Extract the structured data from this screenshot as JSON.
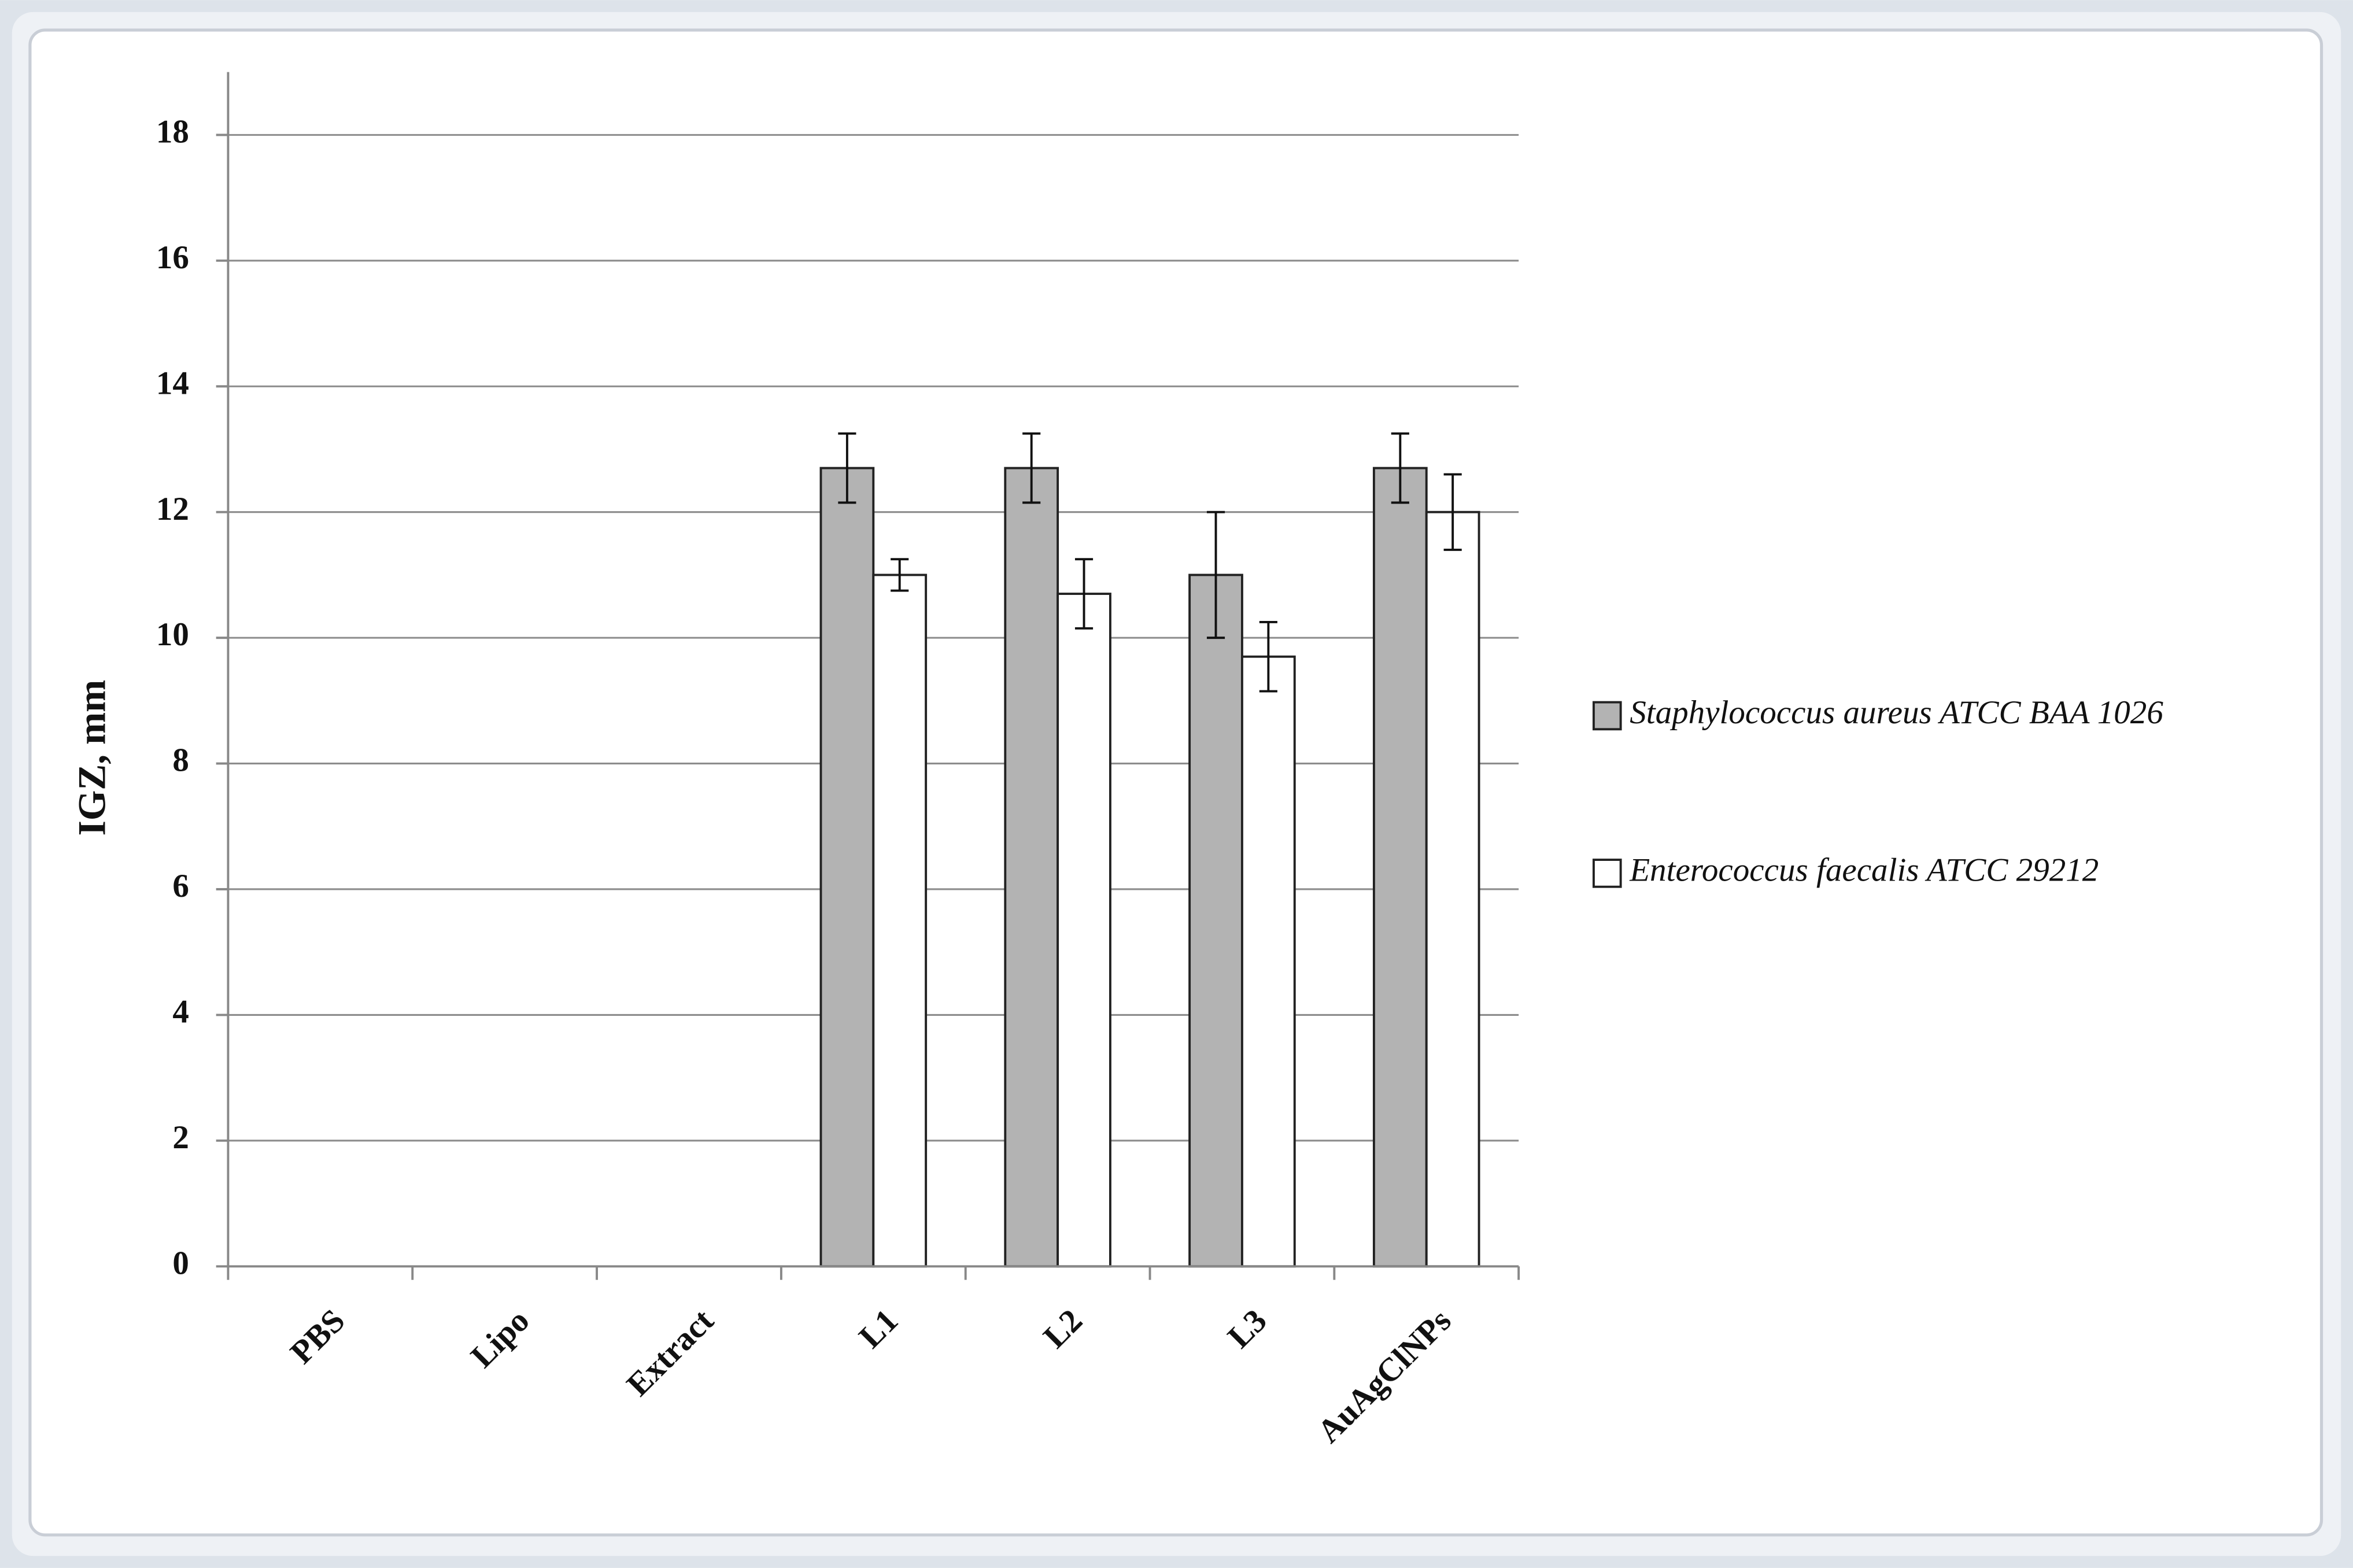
{
  "chart_data": {
    "type": "bar",
    "categories": [
      "PBS",
      "Lipo",
      "Extract",
      "L1",
      "L2",
      "L3",
      "AuAgClNPs"
    ],
    "y_label": "IGZ, mm",
    "series": [
      {
        "name": "Staphylococcus aureus ATCC BAA 1026",
        "color": "#b3b3b3",
        "values": [
          0,
          0,
          0,
          12.7,
          12.7,
          11,
          12.7
        ],
        "errors": [
          null,
          null,
          null,
          0.55,
          0.55,
          1.0,
          0.55
        ]
      },
      {
        "name": "Enterococcus faecalis ATCC 29212",
        "color": "#ffffff",
        "values": [
          0,
          0,
          0,
          11,
          10.7,
          9.7,
          12
        ],
        "errors": [
          null,
          null,
          null,
          0.25,
          0.55,
          0.55,
          0.6
        ]
      }
    ],
    "ylim": [
      0,
      19
    ],
    "yticks": [
      0,
      2,
      4,
      6,
      8,
      10,
      12,
      14,
      16,
      18
    ],
    "grid": true,
    "legend": "right"
  }
}
